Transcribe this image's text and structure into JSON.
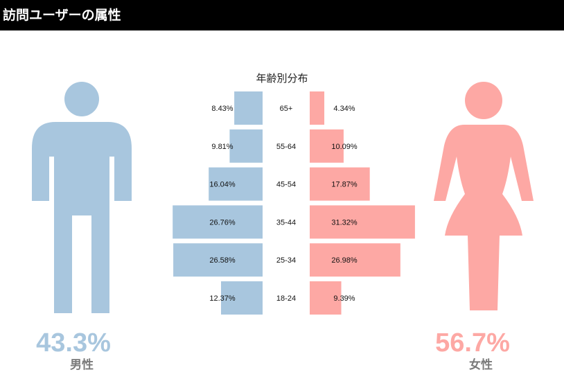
{
  "header": {
    "title": "訪問ユーザーの属性"
  },
  "colors": {
    "male": "#a8c6de",
    "female": "#fda8a4",
    "header_bg": "#000000",
    "header_text": "#ffffff",
    "label_gray": "#7a7a7a"
  },
  "male": {
    "percent": "43.3%",
    "label": "男性",
    "icon": "male-person-icon"
  },
  "female": {
    "percent": "56.7%",
    "label": "女性",
    "icon": "female-person-icon"
  },
  "chart_data": {
    "type": "bar",
    "title": "年齢別分布",
    "categories": [
      "65+",
      "55-64",
      "45-54",
      "35-44",
      "25-34",
      "18-24"
    ],
    "series": [
      {
        "name": "男性",
        "values": [
          8.43,
          9.81,
          16.04,
          26.76,
          26.58,
          12.37
        ],
        "labels": [
          "8.43%",
          "9.81%",
          "16.04%",
          "26.76%",
          "26.58%",
          "12.37%"
        ]
      },
      {
        "name": "女性",
        "values": [
          4.34,
          10.09,
          17.87,
          31.32,
          26.98,
          9.39
        ],
        "labels": [
          "4.34%",
          "10.09%",
          "17.87%",
          "31.32%",
          "26.98%",
          "9.39%"
        ]
      }
    ]
  }
}
